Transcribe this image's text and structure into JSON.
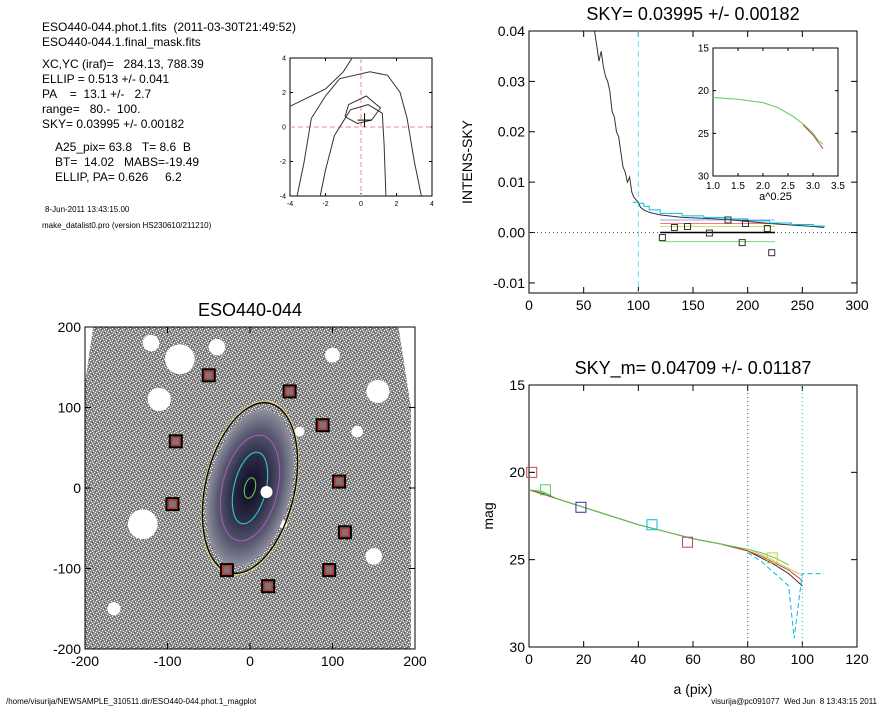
{
  "header": {
    "line1": "ESO440-044.phot.1.fits  (2011-03-30T21:49:52)",
    "line2": "ESO440-044.1.final_mask.fits",
    "line3": "XC,YC (iraf)=   284.13, 788.39",
    "line4": "ELLIP = 0.513 +/- 0.041",
    "line5": "PA    =  13.1 +/-   2.7",
    "line6": "range=   80.-  100.",
    "line7": "SKY= 0.03995 +/- 0.00182",
    "line8": "A25_pix= 63.8   T= 8.6  B",
    "line9": "BT=  14.02   MABS=-19.49",
    "line10": "ELLIP, PA= 0.626     6.2",
    "date": "8-Jun-2011 13:43:15.00",
    "program": "make_datalist0.pro (version HS230610/211210)"
  },
  "footer": {
    "left": "/home/visurija/NEWSAMPLE_310511.dir/ESO440-044.phot.1_magplot",
    "right": "visurija@pc091077  Wed Jun  8 13:43:15 2011"
  },
  "chart_data": [
    {
      "type": "line",
      "name": "contour-panel",
      "xlim": [
        -4,
        4
      ],
      "ylim": [
        -4,
        4
      ],
      "xticks": [
        "-4",
        "-2",
        "0",
        "2",
        "4"
      ],
      "yticks": [
        "-4",
        "-2",
        "0",
        "2",
        "4"
      ],
      "crosshair": [
        0.2,
        0.4
      ],
      "contours": [
        [
          [
            -4,
            1.2
          ],
          [
            -2,
            2.2
          ],
          [
            -1,
            3.2
          ],
          [
            -0.5,
            4
          ]
        ],
        [
          [
            -3.6,
            -4
          ],
          [
            -3.2,
            -2
          ],
          [
            -2.8,
            0.5
          ],
          [
            -2,
            1.8
          ],
          [
            -1.2,
            2.8
          ],
          [
            0.5,
            3.2
          ],
          [
            1.5,
            3
          ],
          [
            2.2,
            2
          ],
          [
            2.6,
            0.5
          ],
          [
            3,
            -2
          ],
          [
            3.4,
            -4
          ]
        ],
        [
          [
            -2.3,
            -4
          ],
          [
            -2,
            -2.5
          ],
          [
            -1.5,
            -0.5
          ],
          [
            -0.6,
            1
          ],
          [
            0.4,
            1.3
          ],
          [
            1.2,
            0.8
          ],
          [
            1.3,
            -1
          ],
          [
            1.4,
            -4
          ]
        ],
        [
          [
            -0.9,
            0.6
          ],
          [
            -0.7,
            1.3
          ],
          [
            0.3,
            1.8
          ],
          [
            1.1,
            1.1
          ],
          [
            0.6,
            0.4
          ],
          [
            -0.2,
            0.2
          ],
          [
            -0.9,
            0.6
          ]
        ]
      ]
    },
    {
      "type": "line",
      "name": "sky-profile",
      "title": "SKY= 0.03995 +/- 0.00182",
      "xlabel": "",
      "ylabel": "INTENS-SKY",
      "xlim": [
        0,
        300
      ],
      "ylim": [
        -0.012,
        0.04
      ],
      "xticks": [
        "0",
        "50",
        "100",
        "150",
        "200",
        "250",
        "300"
      ],
      "yticks": [
        "-0.01",
        "0.00",
        "0.01",
        "0.02",
        "0.03",
        "0.04"
      ],
      "vline": 100,
      "series": [
        {
          "color": "#333333",
          "x": [
            60,
            62,
            64,
            66,
            68,
            70,
            72,
            74,
            76,
            78,
            80,
            82,
            84,
            86,
            88,
            90,
            92,
            94,
            96,
            98,
            100,
            102,
            105,
            110,
            120,
            140,
            160,
            180,
            200,
            220,
            240,
            260,
            270
          ],
          "y": [
            0.04,
            0.037,
            0.034,
            0.036,
            0.033,
            0.031,
            0.03,
            0.028,
            0.024,
            0.023,
            0.02,
            0.019,
            0.016,
            0.013,
            0.012,
            0.01,
            0.011,
            0.008,
            0.007,
            0.0065,
            0.006,
            0.005,
            0.0045,
            0.004,
            0.0035,
            0.003,
            0.0028,
            0.0026,
            0.0022,
            0.0018,
            0.0015,
            0.0012,
            0.001
          ]
        },
        {
          "color": "#00bfd8",
          "x": [
            95,
            100,
            105,
            110,
            120,
            140,
            160,
            180,
            200,
            220,
            240,
            260,
            270
          ],
          "y": [
            0.006,
            0.0058,
            0.0052,
            0.0045,
            0.0038,
            0.0033,
            0.003,
            0.0027,
            0.0023,
            0.0019,
            0.0016,
            0.0013,
            0.0011
          ]
        }
      ],
      "hlines": [
        {
          "y": 0.0025,
          "x1": 120,
          "x2": 225,
          "color": "#9999ff"
        },
        {
          "y": 0.0018,
          "x1": 120,
          "x2": 225,
          "color": "#ff7777"
        },
        {
          "y": 0.0012,
          "x1": 120,
          "x2": 225,
          "color": "#dddd55"
        },
        {
          "y": 0.0,
          "x1": 120,
          "x2": 225,
          "color": "#000000"
        },
        {
          "y": -0.0018,
          "x1": 120,
          "x2": 225,
          "color": "#77dd77"
        }
      ],
      "points": [
        {
          "x": 122,
          "y": -0.001,
          "color": "#333333"
        },
        {
          "x": 133,
          "y": 0.001,
          "color": "#333333"
        },
        {
          "x": 145,
          "y": 0.0012,
          "color": "#333333"
        },
        {
          "x": 165,
          "y": -0.0001,
          "color": "#333333"
        },
        {
          "x": 182,
          "y": 0.0025,
          "color": "#333333"
        },
        {
          "x": 198,
          "y": 0.0018,
          "color": "#333333"
        },
        {
          "x": 195,
          "y": -0.002,
          "color": "#333333"
        },
        {
          "x": 218,
          "y": 0.0008,
          "color": "#333333"
        },
        {
          "x": 222,
          "y": -0.004,
          "color": "#333333"
        }
      ]
    },
    {
      "type": "line",
      "name": "sky-inset",
      "xlabel": "a^0.25",
      "xlim": [
        1.0,
        3.5
      ],
      "ylim": [
        30,
        15
      ],
      "xticks": [
        "1.0",
        "1.5",
        "2.0",
        "2.5",
        "3.0",
        "3.5"
      ],
      "yticks": [
        "15",
        "20",
        "25",
        "30"
      ],
      "series": [
        {
          "color": "#55cc55",
          "x": [
            1.0,
            1.5,
            2.0,
            2.3,
            2.6,
            2.8,
            3.0,
            3.1,
            3.2
          ],
          "y": [
            20.8,
            21.0,
            21.4,
            22.0,
            23.0,
            23.9,
            25.0,
            25.8,
            26.3
          ]
        },
        {
          "color": "#cc4444",
          "x": [
            2.8,
            3.0,
            3.1,
            3.2
          ],
          "y": [
            24.0,
            25.2,
            26.0,
            26.8
          ]
        }
      ]
    },
    {
      "type": "heatmap",
      "name": "galaxy-image",
      "title": "ESO440-044",
      "xlim": [
        -200,
        200
      ],
      "ylim": [
        -200,
        200
      ],
      "xticks": [
        "-200",
        "-100",
        "0",
        "100",
        "200"
      ],
      "yticks": [
        "-200",
        "-100",
        "0",
        "100",
        "200"
      ],
      "center": [
        0,
        0
      ],
      "ellipse_pa_deg": 13.1,
      "ellipse_semi_major": 108,
      "ellipse_semi_minor": 54,
      "squares": [
        {
          "x": -50,
          "y": 140
        },
        {
          "x": 48,
          "y": 120
        },
        {
          "x": -90,
          "y": 58
        },
        {
          "x": 88,
          "y": 78
        },
        {
          "x": 108,
          "y": 8
        },
        {
          "x": -94,
          "y": -20
        },
        {
          "x": 115,
          "y": -55
        },
        {
          "x": -28,
          "y": -102
        },
        {
          "x": 96,
          "y": -102
        },
        {
          "x": 22,
          "y": -122
        }
      ],
      "holes": [
        {
          "x": -120,
          "y": 180,
          "r": 10
        },
        {
          "x": -85,
          "y": 160,
          "r": 18
        },
        {
          "x": -40,
          "y": 175,
          "r": 10
        },
        {
          "x": 100,
          "y": 165,
          "r": 9
        },
        {
          "x": -110,
          "y": 110,
          "r": 14
        },
        {
          "x": 155,
          "y": 120,
          "r": 14
        },
        {
          "x": 130,
          "y": 70,
          "r": 7
        },
        {
          "x": 60,
          "y": 70,
          "r": 6
        },
        {
          "x": -130,
          "y": -45,
          "r": 18
        },
        {
          "x": 150,
          "y": -85,
          "r": 10
        },
        {
          "x": -165,
          "y": -150,
          "r": 8
        },
        {
          "x": 20,
          "y": -5,
          "r": 7
        },
        {
          "x": 40,
          "y": -45,
          "r": 5
        }
      ]
    },
    {
      "type": "line",
      "name": "mag-profile",
      "title": "SKY_m=  0.04709 +/- 0.01187",
      "xlabel": "a (pix)",
      "ylabel": "mag",
      "xlim": [
        0,
        120
      ],
      "ylim": [
        30,
        15
      ],
      "xticks": [
        "0",
        "20",
        "40",
        "60",
        "80",
        "100",
        "120"
      ],
      "yticks": [
        "15",
        "20",
        "25",
        "30"
      ],
      "vlines": [
        {
          "x": 80,
          "color": "#555555"
        },
        {
          "x": 100,
          "color": "#00bfd8"
        }
      ],
      "series": [
        {
          "color": "#333333",
          "x": [
            0,
            5,
            10,
            20,
            30,
            40,
            50,
            60,
            70,
            80,
            85,
            90,
            95,
            100
          ],
          "y": [
            21.0,
            21.2,
            21.5,
            22.0,
            22.5,
            23.0,
            23.4,
            23.8,
            24.1,
            24.5,
            24.9,
            25.3,
            25.8,
            26.5
          ]
        },
        {
          "color": "#cc4444",
          "x": [
            0,
            10,
            20,
            30,
            40,
            50,
            60,
            70,
            80,
            85,
            90,
            95,
            100
          ],
          "y": [
            21.0,
            21.5,
            22.0,
            22.5,
            23.0,
            23.4,
            23.8,
            24.1,
            24.5,
            24.8,
            25.2,
            25.6,
            26.2
          ]
        },
        {
          "color": "#55cc55",
          "x": [
            0,
            5,
            10,
            20,
            30,
            40,
            50,
            60,
            70,
            80,
            85,
            90,
            95
          ],
          "y": [
            21.0,
            21.1,
            21.5,
            22.0,
            22.5,
            23.0,
            23.4,
            23.8,
            24.1,
            24.4,
            24.6,
            24.9,
            25.3
          ]
        },
        {
          "color": "#cccc33",
          "x": [
            80,
            85,
            90,
            95,
            100
          ],
          "y": [
            24.4,
            24.7,
            25.1,
            25.5,
            25.9
          ]
        },
        {
          "color": "#00bfd8",
          "x": [
            80,
            85,
            90,
            95,
            97,
            100,
            108
          ],
          "y": [
            24.6,
            25.1,
            25.8,
            26.5,
            29.5,
            25.8,
            25.8
          ]
        }
      ],
      "points": [
        {
          "x": 1,
          "y": 20.0,
          "color": "#cc4444"
        },
        {
          "x": 6,
          "y": 21.0,
          "color": "#55cc55"
        },
        {
          "x": 19,
          "y": 22.0,
          "color": "#333399"
        },
        {
          "x": 45,
          "y": 23.0,
          "color": "#00bfd8"
        },
        {
          "x": 58,
          "y": 24.0,
          "color": "#aa4488"
        },
        {
          "x": 89,
          "y": 24.9,
          "color": "#cccc33"
        }
      ]
    }
  ]
}
